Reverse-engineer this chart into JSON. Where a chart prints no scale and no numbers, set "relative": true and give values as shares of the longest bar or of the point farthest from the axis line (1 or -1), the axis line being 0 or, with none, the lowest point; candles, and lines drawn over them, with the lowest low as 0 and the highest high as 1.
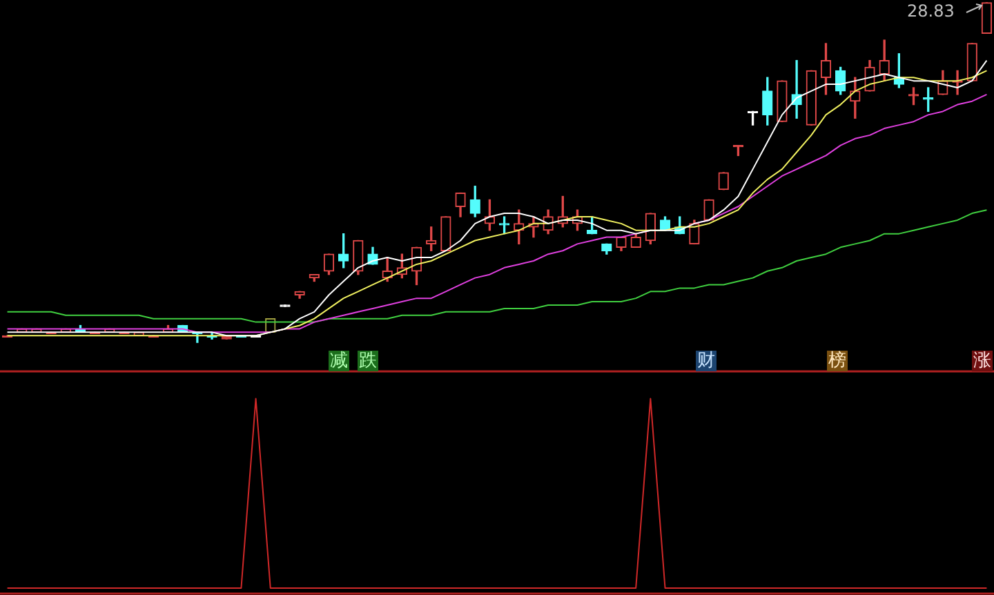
{
  "chart_data": [
    {
      "type": "candlestick",
      "relative": true,
      "categories": [
        null,
        null,
        null,
        null,
        null,
        null,
        null,
        null,
        null,
        null,
        null,
        null,
        null,
        null,
        null,
        null,
        null,
        null,
        null,
        null,
        null,
        null,
        null,
        null,
        null,
        null,
        null,
        null,
        null,
        null,
        null,
        null,
        null,
        null,
        null,
        null,
        null,
        null,
        null,
        null,
        null,
        null,
        null,
        null,
        null,
        null,
        null,
        null,
        null,
        null,
        null,
        null,
        null,
        null,
        null,
        null,
        null,
        null,
        null,
        null,
        null,
        null,
        null,
        null,
        null,
        null,
        null,
        null
      ],
      "ohlc": [
        [
          0.02,
          0.02,
          0.02,
          0.02
        ],
        [
          0.03,
          0.04,
          0.03,
          0.04
        ],
        [
          0.03,
          0.04,
          0.03,
          0.04
        ],
        [
          0.03,
          0.03,
          0.03,
          0.03
        ],
        [
          0.03,
          0.04,
          0.03,
          0.04
        ],
        [
          0.04,
          0.05,
          0.03,
          0.03
        ],
        [
          0.03,
          0.03,
          0.03,
          0.03
        ],
        [
          0.03,
          0.04,
          0.03,
          0.04
        ],
        [
          0.03,
          0.03,
          0.03,
          0.03
        ],
        [
          0.02,
          0.03,
          0.02,
          0.03
        ],
        [
          0.02,
          0.02,
          0.02,
          0.02
        ],
        [
          0.03,
          0.05,
          0.03,
          0.04
        ],
        [
          0.05,
          0.05,
          0.03,
          0.03
        ],
        [
          0.03,
          0.03,
          0,
          0.03
        ],
        [
          0.02,
          0.03,
          0.01,
          0.02
        ],
        [
          0.02,
          0.02,
          0.01,
          0.01
        ],
        [
          0.02,
          0.02,
          0.02,
          0.02
        ],
        [
          0.02,
          0.02,
          0.02,
          0.02
        ],
        [
          0.03,
          0.07,
          0.03,
          0.07
        ],
        [
          0.11,
          0.11,
          0.11,
          0.11
        ],
        [
          0.14,
          0.15,
          0.13,
          0.15
        ],
        [
          0.19,
          0.2,
          0.18,
          0.2
        ],
        [
          0.21,
          0.26,
          0.2,
          0.26
        ],
        [
          0.26,
          0.32,
          0.22,
          0.24
        ],
        [
          0.21,
          0.3,
          0.2,
          0.3
        ],
        [
          0.26,
          0.28,
          0.23,
          0.23
        ],
        [
          0.19,
          0.25,
          0.18,
          0.21
        ],
        [
          0.2,
          0.26,
          0.19,
          0.22
        ],
        [
          0.21,
          0.28,
          0.17,
          0.28
        ],
        [
          0.29,
          0.34,
          0.27,
          0.3
        ],
        [
          0.27,
          0.37,
          0.27,
          0.37
        ],
        [
          0.4,
          0.44,
          0.37,
          0.44
        ],
        [
          0.42,
          0.46,
          0.37,
          0.38
        ],
        [
          0.35,
          0.42,
          0.33,
          0.37
        ],
        [
          0.35,
          0.37,
          0.32,
          0.35
        ],
        [
          0.33,
          0.39,
          0.29,
          0.35
        ],
        [
          0.34,
          0.37,
          0.31,
          0.35
        ],
        [
          0.33,
          0.39,
          0.32,
          0.37
        ],
        [
          0.35,
          0.43,
          0.34,
          0.37
        ],
        [
          0.35,
          0.39,
          0.33,
          0.37
        ],
        [
          0.33,
          0.37,
          0.32,
          0.32
        ],
        [
          0.29,
          0.29,
          0.26,
          0.27
        ],
        [
          0.28,
          0.31,
          0.27,
          0.31
        ],
        [
          0.28,
          0.32,
          0.28,
          0.31
        ],
        [
          0.3,
          0.38,
          0.29,
          0.38
        ],
        [
          0.36,
          0.37,
          0.33,
          0.33
        ],
        [
          0.34,
          0.37,
          0.32,
          0.32
        ],
        [
          0.29,
          0.36,
          0.29,
          0.35
        ],
        [
          0.36,
          0.42,
          0.36,
          0.42
        ],
        [
          0.45,
          0.5,
          0.45,
          0.5
        ],
        [
          0.58,
          0.58,
          0.55,
          0.58
        ],
        [
          0.68,
          0.68,
          0.64,
          0.68
        ],
        [
          0.74,
          0.78,
          0.64,
          0.67
        ],
        [
          0.65,
          0.77,
          0.65,
          0.77
        ],
        [
          0.73,
          0.83,
          0.66,
          0.7
        ],
        [
          0.64,
          0.8,
          0.64,
          0.8
        ],
        [
          0.78,
          0.88,
          0.73,
          0.83
        ],
        [
          0.8,
          0.81,
          0.73,
          0.74
        ],
        [
          0.71,
          0.78,
          0.66,
          0.74
        ],
        [
          0.74,
          0.83,
          0.74,
          0.81
        ],
        [
          0.79,
          0.89,
          0.77,
          0.83
        ],
        [
          0.78,
          0.85,
          0.75,
          0.76
        ],
        [
          0.73,
          0.75,
          0.7,
          0.73
        ],
        [
          0.72,
          0.75,
          0.68,
          0.72
        ],
        [
          0.73,
          0.8,
          0.73,
          0.77
        ],
        [
          0.77,
          0.8,
          0.73,
          0.77
        ],
        [
          0.77,
          0.88,
          0.77,
          0.88
        ],
        [
          0.91,
          1,
          0.91,
          1
        ]
      ],
      "colors": [
        "#e04848",
        "#e04848",
        "#e04848",
        "#e04848",
        "#e04848",
        "#54fcfc",
        "#e04848",
        "#e04848",
        "#e04848",
        "#e04848",
        "#e04848",
        "#e04848",
        "#54fcfc",
        "#54fcfc",
        "#54fcfc",
        "#c84040",
        "#54fcfc",
        "#ffffff",
        "#a0a040",
        "#ffffff",
        "#e04848",
        "#e04848",
        "#e04848",
        "#54fcfc",
        "#e04848",
        "#54fcfc",
        "#e04848",
        "#e04848",
        "#e04848",
        "#e04848",
        "#e04848",
        "#e04848",
        "#54fcfc",
        "#e04848",
        "#54fcfc",
        "#e04848",
        "#e04848",
        "#e04848",
        "#e04848",
        "#e04848",
        "#54fcfc",
        "#54fcfc",
        "#e04848",
        "#e04848",
        "#e04848",
        "#54fcfc",
        "#54fcfc",
        "#e04848",
        "#e04848",
        "#e04848",
        "#e04848",
        "#ffffff",
        "#54fcfc",
        "#e04848",
        "#54fcfc",
        "#e04848",
        "#e04848",
        "#54fcfc",
        "#e04848",
        "#e04848",
        "#e04848",
        "#54fcfc",
        "#e04848",
        "#54fcfc",
        "#e04848",
        "#e04848",
        "#e04848",
        "#e04848"
      ],
      "series": [
        {
          "type": "line",
          "color": "#ffffff",
          "values": [
            0.03,
            0.03,
            0.03,
            0.03,
            0.03,
            0.03,
            0.03,
            0.03,
            0.03,
            0.03,
            0.03,
            0.03,
            0.03,
            0.03,
            0.03,
            0.02,
            0.02,
            0.02,
            0.03,
            0.04,
            0.07,
            0.09,
            0.14,
            0.18,
            0.22,
            0.24,
            0.25,
            0.24,
            0.25,
            0.25,
            0.27,
            0.3,
            0.35,
            0.37,
            0.38,
            0.38,
            0.37,
            0.35,
            0.36,
            0.36,
            0.35,
            0.33,
            0.33,
            0.32,
            0.33,
            0.33,
            0.33,
            0.35,
            0.36,
            0.39,
            0.43,
            0.51,
            0.59,
            0.67,
            0.72,
            0.74,
            0.76,
            0.76,
            0.77,
            0.78,
            0.79,
            0.78,
            0.77,
            0.77,
            0.76,
            0.75,
            0.77,
            0.83
          ]
        },
        {
          "type": "line",
          "color": "#f0f060",
          "values": [
            0.02,
            0.02,
            0.02,
            0.02,
            0.02,
            0.02,
            0.02,
            0.02,
            0.02,
            0.02,
            0.02,
            0.02,
            0.02,
            0.02,
            0.02,
            0.02,
            0.02,
            0.02,
            0.03,
            0.04,
            0.05,
            0.07,
            0.1,
            0.13,
            0.15,
            0.17,
            0.19,
            0.21,
            0.23,
            0.24,
            0.26,
            0.28,
            0.3,
            0.31,
            0.32,
            0.33,
            0.35,
            0.35,
            0.36,
            0.37,
            0.37,
            0.36,
            0.35,
            0.33,
            0.33,
            0.33,
            0.34,
            0.34,
            0.35,
            0.37,
            0.39,
            0.44,
            0.48,
            0.51,
            0.56,
            0.61,
            0.67,
            0.7,
            0.74,
            0.76,
            0.77,
            0.78,
            0.78,
            0.77,
            0.77,
            0.77,
            0.78,
            0.8
          ]
        },
        {
          "type": "line",
          "color": "#e040e0",
          "values": [
            0.04,
            0.04,
            0.04,
            0.04,
            0.04,
            0.04,
            0.04,
            0.04,
            0.04,
            0.04,
            0.04,
            0.04,
            0.04,
            0.03,
            0.03,
            0.03,
            0.03,
            0.03,
            0.03,
            0.04,
            0.04,
            0.06,
            0.07,
            0.08,
            0.09,
            0.1,
            0.11,
            0.12,
            0.13,
            0.13,
            0.15,
            0.17,
            0.19,
            0.2,
            0.22,
            0.23,
            0.24,
            0.26,
            0.27,
            0.29,
            0.3,
            0.31,
            0.31,
            0.32,
            0.33,
            null,
            null,
            0.35,
            0.36,
            0.38,
            0.4,
            0.43,
            0.46,
            0.49,
            0.51,
            0.53,
            0.55,
            0.58,
            0.6,
            0.61,
            0.63,
            0.64,
            0.65,
            0.67,
            0.68,
            0.7,
            0.71,
            0.73
          ]
        },
        {
          "type": "line",
          "color": "#40d040",
          "values": [
            0.09,
            0.09,
            0.09,
            0.09,
            0.08,
            0.08,
            0.08,
            0.08,
            0.08,
            0.08,
            0.07,
            0.07,
            0.07,
            0.07,
            0.07,
            0.07,
            0.07,
            0.06,
            0.06,
            0.06,
            0.06,
            0.06,
            0.07,
            0.07,
            0.07,
            0.07,
            0.07,
            0.08,
            0.08,
            0.08,
            0.09,
            0.09,
            0.09,
            0.09,
            0.1,
            0.1,
            0.1,
            0.11,
            0.11,
            0.11,
            0.12,
            0.12,
            0.12,
            0.13,
            0.15,
            0.15,
            0.16,
            0.16,
            0.17,
            0.17,
            0.18,
            0.19,
            0.21,
            0.22,
            0.24,
            0.25,
            0.26,
            0.28,
            0.29,
            0.3,
            0.32,
            0.32,
            0.33,
            0.34,
            0.35,
            0.36,
            0.38,
            0.39
          ]
        }
      ],
      "annotations": [
        "28.83",
        "减",
        "跌",
        "财",
        "榜",
        "涨"
      ]
    },
    {
      "type": "line",
      "relative": true,
      "categories": [
        null,
        null,
        null,
        null,
        null,
        null,
        null,
        null,
        null,
        null,
        null,
        null,
        null,
        null,
        null,
        null,
        null,
        null,
        null,
        null,
        null,
        null,
        null,
        null,
        null,
        null,
        null,
        null,
        null,
        null,
        null,
        null,
        null,
        null,
        null,
        null,
        null,
        null,
        null,
        null,
        null,
        null,
        null,
        null,
        null,
        null,
        null,
        null,
        null,
        null,
        null,
        null,
        null,
        null,
        null,
        null,
        null,
        null,
        null,
        null,
        null,
        null,
        null,
        null,
        null,
        null,
        null,
        null
      ],
      "series": [
        {
          "color": "#d02828",
          "values": [
            0,
            0,
            0,
            0,
            0,
            0,
            0,
            0,
            0,
            0,
            0,
            0,
            0,
            0,
            0,
            0,
            0,
            1,
            0,
            0,
            0,
            0,
            0,
            0,
            0,
            0,
            0,
            0,
            0,
            0,
            0,
            0,
            0,
            0,
            0,
            0,
            0,
            0,
            0,
            0,
            0,
            0,
            0,
            0,
            1,
            0,
            0,
            0,
            0,
            0,
            0,
            0,
            0,
            0,
            0,
            0,
            0,
            0,
            0,
            0,
            0,
            0,
            0,
            0,
            0,
            0,
            0,
            0
          ]
        }
      ]
    }
  ]
}
